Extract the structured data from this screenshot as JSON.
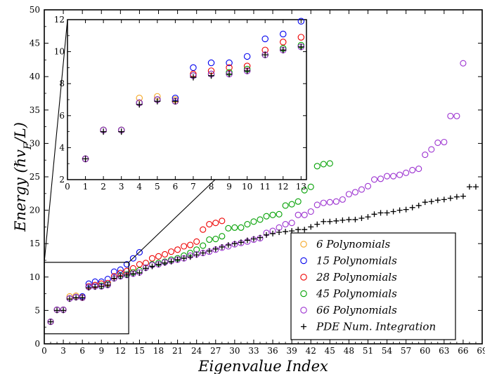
{
  "chart_data": {
    "type": "scatter",
    "xlabel": "Eigenvalue Index",
    "ylabel": "Energy (ℏv_F/L)",
    "ylabel_parts": {
      "main": "Energy (ℏv",
      "sub": "F",
      "tail": "/L)"
    },
    "xlim": [
      0,
      69
    ],
    "ylim": [
      0,
      50
    ],
    "xticks": [
      "0",
      "3",
      "6",
      "9",
      "12",
      "15",
      "18",
      "21",
      "24",
      "27",
      "30",
      "33",
      "36",
      "39",
      "42",
      "45",
      "48",
      "51",
      "54",
      "57",
      "60",
      "63",
      "66",
      "69"
    ],
    "yticks": [
      "0",
      "5",
      "10",
      "15",
      "20",
      "25",
      "30",
      "35",
      "40",
      "45",
      "50"
    ],
    "legend_position": "lower-right",
    "colors": {
      "orange": "#f5a623",
      "blue": "#0000ee",
      "red": "#ee0000",
      "green": "#00a000",
      "purple": "#9b30d0",
      "black": "#000000"
    },
    "series": [
      {
        "name": "6 Polynomials",
        "marker": "circle",
        "color": "#f5a623",
        "x": [
          1,
          2,
          3,
          4,
          5,
          6
        ],
        "y": [
          3.3,
          5.1,
          5.1,
          7.1,
          7.2,
          7.0
        ]
      },
      {
        "name": "15 Polynomials",
        "marker": "circle",
        "color": "#0000ee",
        "x": [
          1,
          2,
          3,
          4,
          5,
          6,
          7,
          8,
          9,
          10,
          11,
          12,
          13,
          14,
          15
        ],
        "y": [
          3.3,
          5.1,
          5.1,
          6.8,
          7.0,
          7.1,
          9.0,
          9.3,
          9.3,
          9.7,
          10.8,
          11.1,
          11.9,
          12.8,
          13.7
        ]
      },
      {
        "name": "28 Polynomials",
        "marker": "circle",
        "color": "#ee0000",
        "x": [
          1,
          2,
          3,
          4,
          5,
          6,
          7,
          8,
          9,
          10,
          11,
          12,
          13,
          14,
          15,
          16,
          17,
          18,
          19,
          20,
          21,
          22,
          23,
          24,
          25,
          26,
          27,
          28
        ],
        "y": [
          3.3,
          5.1,
          5.1,
          6.8,
          7.0,
          6.9,
          8.6,
          8.8,
          9.0,
          9.1,
          10.1,
          10.6,
          10.9,
          11.3,
          11.9,
          12.1,
          12.8,
          13.1,
          13.4,
          13.8,
          14.1,
          14.6,
          14.8,
          15.3,
          17.1,
          17.9,
          18.1,
          18.4
        ]
      },
      {
        "name": "45 Polynomials",
        "marker": "circle",
        "color": "#00a000",
        "x": [
          1,
          2,
          3,
          4,
          5,
          6,
          7,
          8,
          9,
          10,
          11,
          12,
          13,
          14,
          15,
          16,
          17,
          18,
          19,
          20,
          21,
          22,
          23,
          24,
          25,
          26,
          27,
          28,
          29,
          30,
          31,
          32,
          33,
          34,
          35,
          36,
          37,
          38,
          39,
          40,
          41,
          42,
          43,
          44,
          45
        ],
        "y": [
          3.3,
          5.1,
          5.1,
          6.8,
          7.0,
          6.9,
          8.5,
          8.6,
          8.7,
          8.9,
          9.8,
          10.2,
          10.4,
          10.7,
          11.0,
          11.4,
          11.9,
          12.1,
          12.3,
          12.6,
          12.8,
          13.2,
          13.6,
          14.1,
          14.7,
          15.6,
          15.7,
          16.1,
          17.3,
          17.4,
          17.4,
          17.9,
          18.3,
          18.6,
          19.1,
          19.3,
          19.4,
          20.7,
          20.9,
          21.3,
          23.0,
          23.5,
          26.6,
          26.9,
          27.0
        ]
      },
      {
        "name": "66 Polynomials",
        "marker": "circle",
        "color": "#9b30d0",
        "x": [
          1,
          2,
          3,
          4,
          5,
          6,
          7,
          8,
          9,
          10,
          11,
          12,
          13,
          14,
          15,
          16,
          17,
          18,
          19,
          20,
          21,
          22,
          23,
          24,
          25,
          26,
          27,
          28,
          29,
          30,
          31,
          32,
          33,
          34,
          35,
          36,
          37,
          38,
          39,
          40,
          41,
          42,
          43,
          44,
          45,
          46,
          47,
          48,
          49,
          50,
          51,
          52,
          53,
          54,
          55,
          56,
          57,
          58,
          59,
          60,
          61,
          62,
          63,
          64,
          65,
          66
        ],
        "y": [
          3.3,
          5.1,
          5.1,
          6.8,
          7.0,
          6.9,
          8.5,
          8.6,
          8.6,
          8.8,
          9.8,
          10.1,
          10.3,
          10.5,
          10.7,
          11.4,
          11.8,
          11.9,
          12.2,
          12.4,
          12.6,
          12.8,
          13.2,
          13.4,
          13.6,
          13.8,
          14.1,
          14.4,
          14.6,
          14.9,
          15.1,
          15.3,
          15.6,
          15.8,
          16.6,
          16.9,
          17.4,
          17.9,
          18.1,
          19.3,
          19.3,
          19.8,
          20.8,
          21.1,
          21.2,
          21.3,
          21.6,
          22.4,
          22.7,
          23.1,
          23.6,
          24.6,
          24.7,
          25.1,
          25.1,
          25.3,
          25.6,
          26.0,
          26.2,
          28.3,
          29.1,
          30.1,
          30.2,
          34.1,
          34.1,
          42.0
        ]
      },
      {
        "name": "PDE Num. Integration",
        "marker": "plus",
        "color": "#000000",
        "x": [
          1,
          2,
          3,
          4,
          5,
          6,
          7,
          8,
          9,
          10,
          11,
          12,
          13,
          14,
          15,
          16,
          17,
          18,
          19,
          20,
          21,
          22,
          23,
          24,
          25,
          26,
          27,
          28,
          29,
          30,
          31,
          32,
          33,
          34,
          35,
          36,
          37,
          38,
          39,
          40,
          41,
          42,
          43,
          44,
          45,
          46,
          47,
          48,
          49,
          50,
          51,
          52,
          53,
          54,
          55,
          56,
          57,
          58,
          59,
          60,
          61,
          62,
          63,
          64,
          65,
          66,
          67,
          68
        ],
        "y": [
          3.3,
          5.0,
          5.0,
          6.7,
          6.9,
          6.9,
          8.4,
          8.5,
          8.6,
          8.8,
          9.8,
          10.1,
          10.3,
          10.5,
          10.6,
          11.3,
          11.6,
          11.9,
          12.1,
          12.3,
          12.6,
          12.8,
          13.0,
          13.3,
          13.6,
          13.9,
          14.2,
          14.5,
          14.8,
          15.0,
          15.2,
          15.5,
          15.7,
          15.9,
          16.3,
          16.5,
          16.7,
          16.8,
          16.9,
          17.1,
          17.1,
          17.5,
          17.9,
          18.3,
          18.3,
          18.4,
          18.5,
          18.6,
          18.6,
          18.8,
          19.0,
          19.4,
          19.6,
          19.6,
          19.8,
          20.0,
          20.1,
          20.4,
          20.7,
          21.2,
          21.3,
          21.5,
          21.6,
          21.8,
          22.0,
          22.1,
          23.5,
          23.5
        ]
      }
    ],
    "inset": {
      "xlim": [
        0,
        13.3
      ],
      "ylim": [
        2,
        12
      ],
      "xticks": [
        "0",
        "1",
        "2",
        "3",
        "4",
        "5",
        "6",
        "7",
        "8",
        "9",
        "10",
        "11",
        "12",
        "13"
      ],
      "yticks": [
        "2",
        "4",
        "6",
        "8",
        "10",
        "12"
      ],
      "zoom_region": {
        "x": [
          0,
          13.3
        ],
        "y": [
          1.5,
          12.2
        ]
      }
    }
  }
}
